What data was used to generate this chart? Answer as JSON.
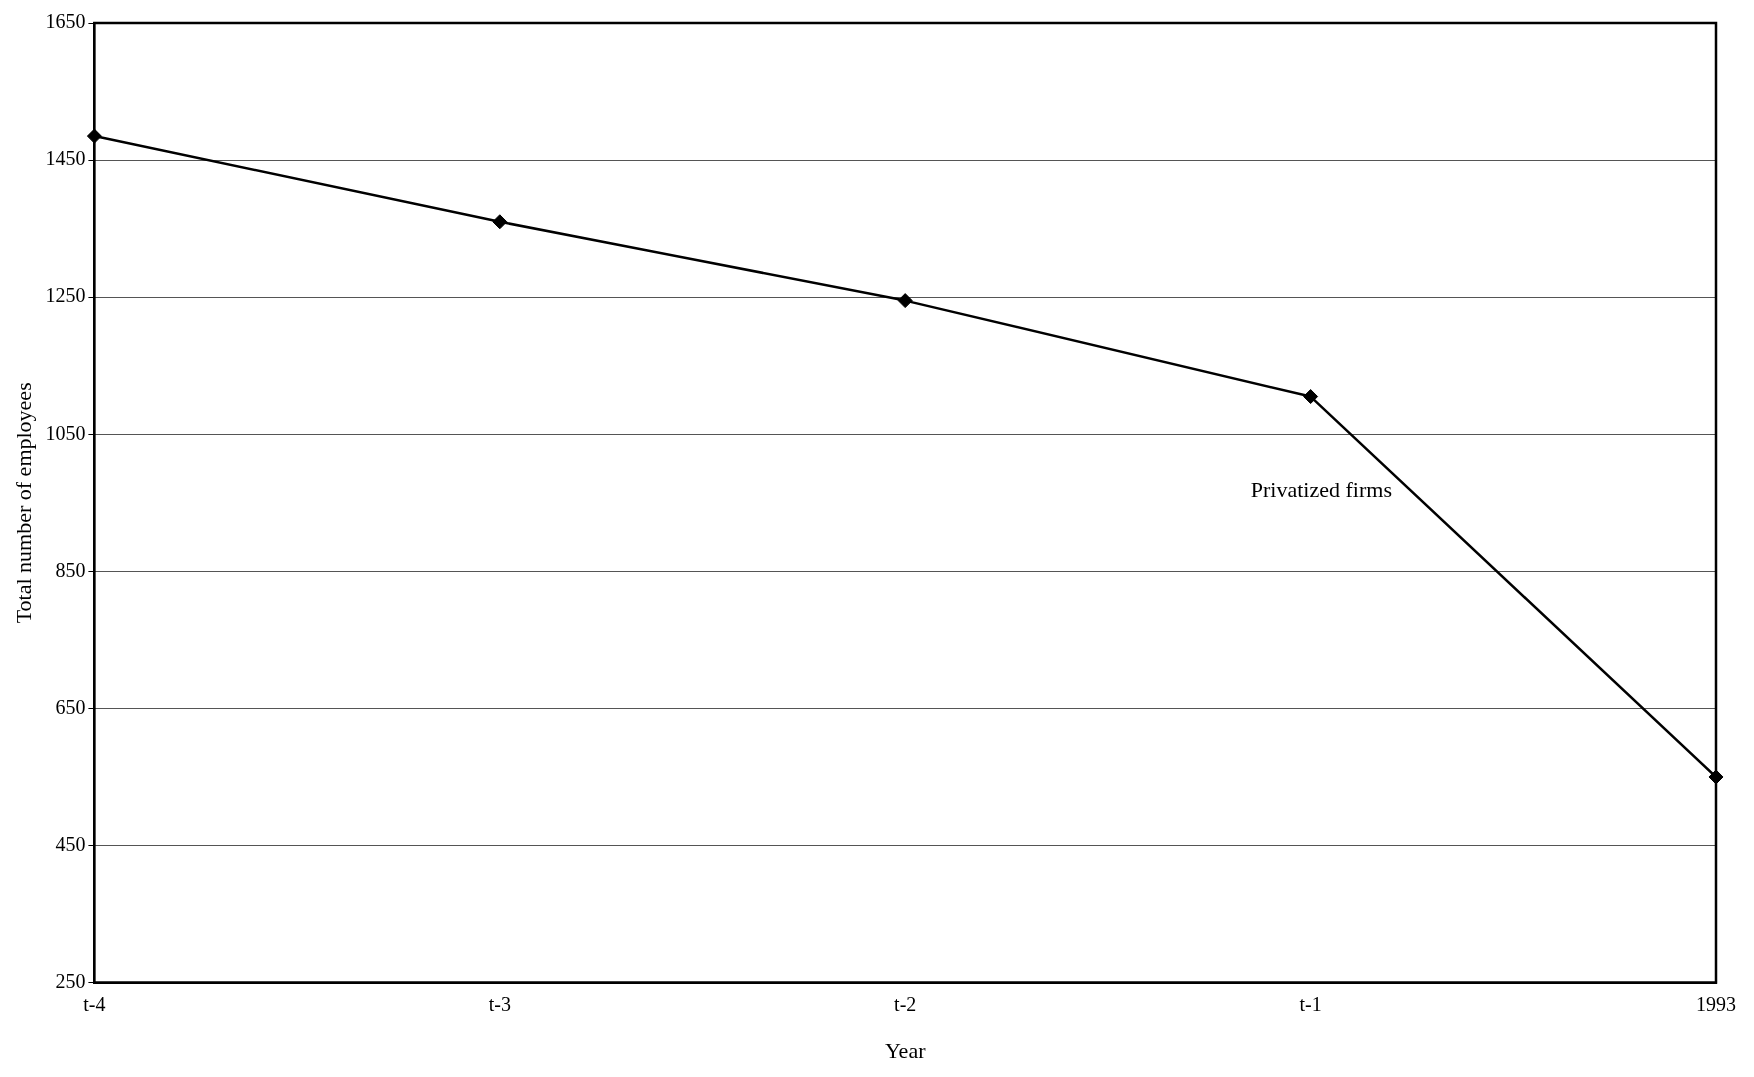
{
  "chart_data": {
    "type": "line",
    "xlabel": "Year",
    "ylabel": "Total number of employees",
    "categories": [
      "t-4",
      "t-3",
      "t-2",
      "t-1",
      "1993"
    ],
    "series": [
      {
        "name": "Privatized firms",
        "color": "#000000",
        "values": [
          1485,
          1360,
          1245,
          1105,
          550
        ]
      }
    ],
    "ylim": [
      250,
      1650
    ],
    "yticks": [
      250,
      450,
      650,
      850,
      1050,
      1250,
      1450,
      1650
    ],
    "grid": "y",
    "legend": false,
    "marker": "diamond",
    "line_style": "solid"
  }
}
